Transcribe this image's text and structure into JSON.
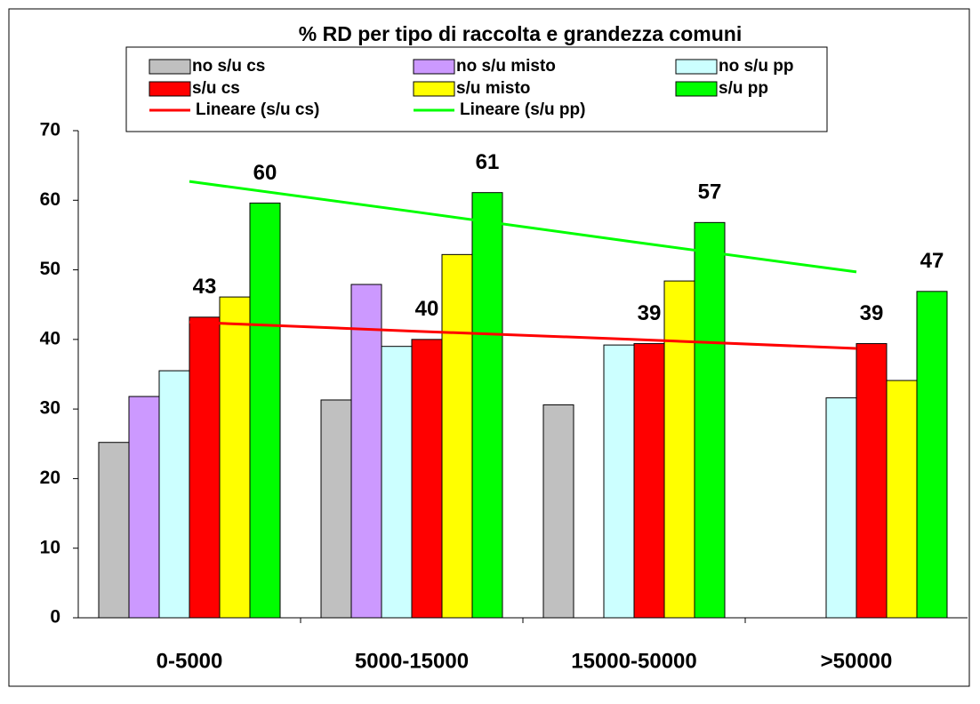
{
  "chart_data": {
    "type": "bar",
    "title": "% RD per tipo di raccolta e grandezza comuni",
    "categories": [
      "0-5000",
      "5000-15000",
      "15000-50000",
      ">50000"
    ],
    "series": [
      {
        "name": "no s/u cs",
        "color": "#c0c0c0",
        "values": [
          25.2,
          31.3,
          30.6,
          null
        ]
      },
      {
        "name": "no s/u misto",
        "color": "#cc99ff",
        "values": [
          31.8,
          47.9,
          null,
          null
        ]
      },
      {
        "name": "no s/u pp",
        "color": "#ccffff",
        "values": [
          35.5,
          39.0,
          39.2,
          31.6
        ]
      },
      {
        "name": "s/u cs",
        "color": "#ff0000",
        "values": [
          43.2,
          40.0,
          39.4,
          39.4
        ],
        "value_labels": [
          "43",
          "40",
          "39",
          "39"
        ]
      },
      {
        "name": "s/u misto",
        "color": "#ffff00",
        "values": [
          46.1,
          52.2,
          48.4,
          34.1
        ]
      },
      {
        "name": "s/u pp",
        "color": "#00ff00",
        "values": [
          59.6,
          61.1,
          56.8,
          46.9
        ],
        "value_labels": [
          "60",
          "61",
          "57",
          "47"
        ]
      }
    ],
    "trendlines": [
      {
        "name": "Lineare (s/u cs)",
        "color": "#ff0000",
        "values": [
          42.5,
          41.2,
          40.0,
          38.7
        ]
      },
      {
        "name": "Lineare (s/u pp)",
        "color": "#00ff00",
        "values": [
          62.7,
          58.4,
          54.0,
          49.7
        ]
      }
    ],
    "ylim": [
      0,
      70
    ],
    "yticks": [
      0,
      10,
      20,
      30,
      40,
      50,
      60,
      70
    ],
    "grid": false
  }
}
